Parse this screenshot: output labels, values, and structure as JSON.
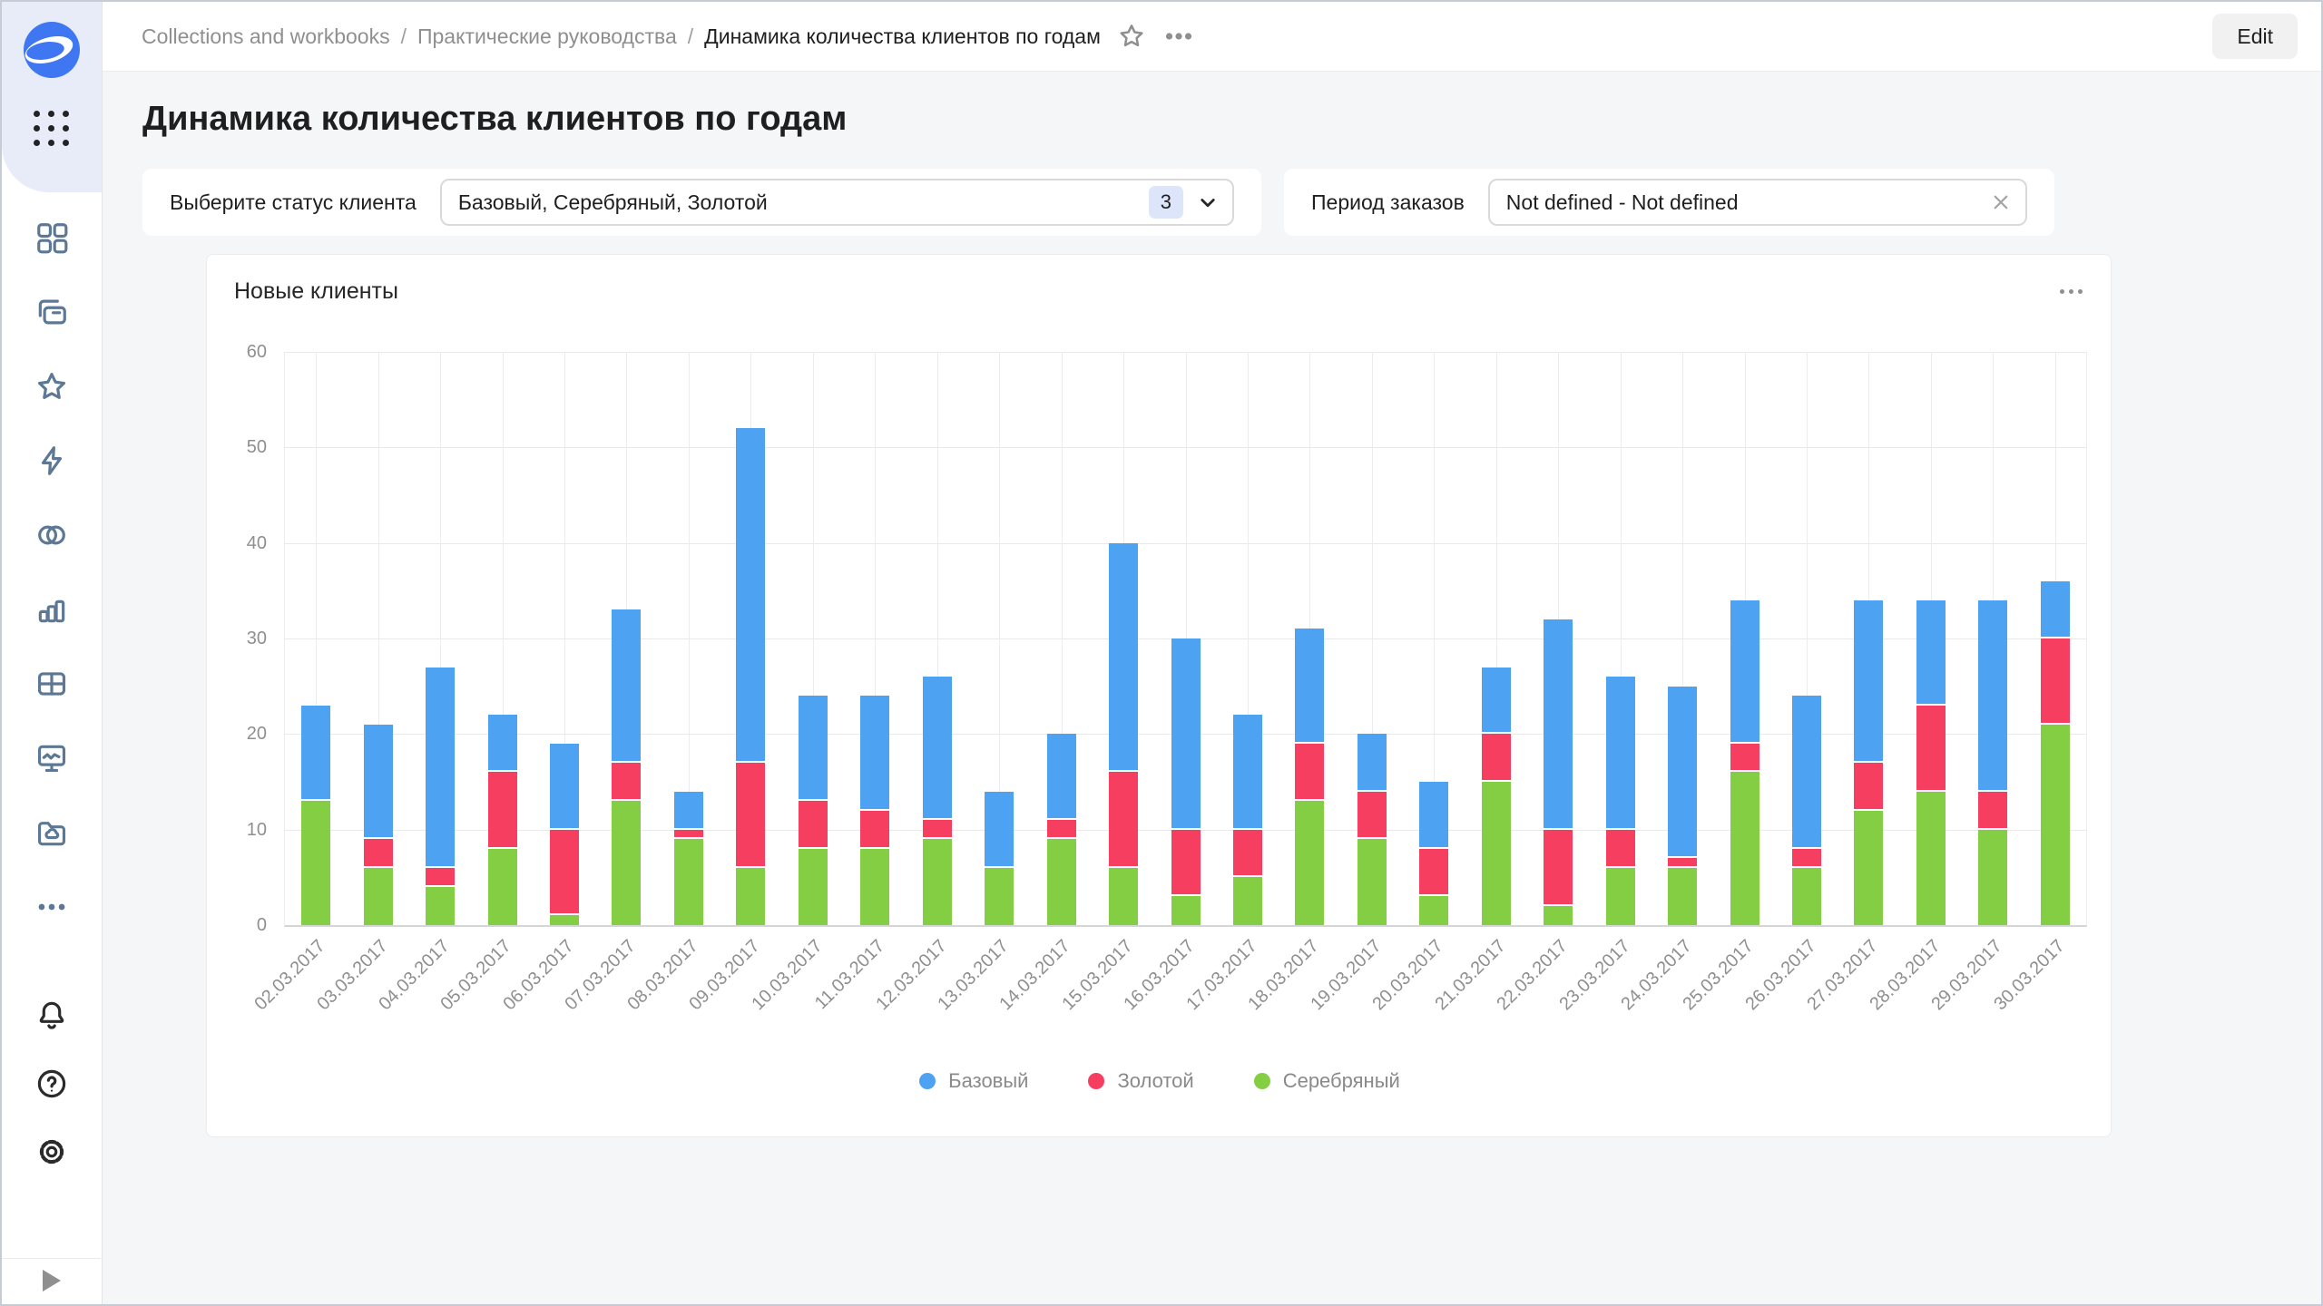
{
  "topbar": {
    "breadcrumb": {
      "items": [
        "Collections and workbooks",
        "Практические руководства",
        "Динамика количества клиентов по годам"
      ],
      "separator": "/"
    },
    "edit_label": "Edit"
  },
  "page": {
    "title": "Динамика количества клиентов по годам"
  },
  "filters": {
    "status": {
      "label": "Выберите статус клиента",
      "value": "Базовый, Серебряный, Золотой",
      "count": "3"
    },
    "period": {
      "label": "Период заказов",
      "value": "Not defined - Not defined"
    }
  },
  "chart": {
    "title": "Новые клиенты"
  },
  "sidebar": {
    "icons": [
      "datalens-logo",
      "apps-grid",
      "widgets",
      "workbooks",
      "favorites",
      "editor",
      "connections",
      "charts",
      "datasets",
      "monitoring",
      "storage",
      "more",
      "notifications",
      "help",
      "settings",
      "expand"
    ]
  },
  "colors": {
    "accent_blue": "#4DA2F1",
    "logo_blue": "#3F76F2",
    "sidebar_icon": "#5c7894",
    "grid": "#e9e9e9",
    "axis_text": "#8f8f8f"
  },
  "chart_data": {
    "type": "bar",
    "stacked": true,
    "title": "Новые клиенты",
    "xlabel": "",
    "ylabel": "",
    "ylim": [
      0,
      60
    ],
    "ytick_step": 10,
    "grid": true,
    "legend_position": "bottom",
    "legend_order": [
      "Базовый",
      "Золотой",
      "Серебряный"
    ],
    "categories": [
      "02.03.2017",
      "03.03.2017",
      "04.03.2017",
      "05.03.2017",
      "06.03.2017",
      "07.03.2017",
      "08.03.2017",
      "09.03.2017",
      "10.03.2017",
      "11.03.2017",
      "12.03.2017",
      "13.03.2017",
      "14.03.2017",
      "15.03.2017",
      "16.03.2017",
      "17.03.2017",
      "18.03.2017",
      "19.03.2017",
      "20.03.2017",
      "21.03.2017",
      "22.03.2017",
      "23.03.2017",
      "24.03.2017",
      "25.03.2017",
      "26.03.2017",
      "27.03.2017",
      "28.03.2017",
      "29.03.2017",
      "30.03.2017"
    ],
    "series": [
      {
        "name": "Серебряный",
        "color": "#84CE44",
        "stack_position": "bottom",
        "values": [
          13,
          6,
          4,
          8,
          1,
          13,
          9,
          6,
          8,
          8,
          9,
          6,
          9,
          6,
          3,
          5,
          13,
          9,
          3,
          15,
          2,
          6,
          6,
          16,
          6,
          12,
          14,
          10,
          21
        ]
      },
      {
        "name": "Золотой",
        "color": "#F63E61",
        "stack_position": "middle",
        "values": [
          0,
          3,
          2,
          8,
          9,
          4,
          1,
          11,
          5,
          4,
          2,
          0,
          2,
          10,
          7,
          5,
          6,
          5,
          5,
          5,
          8,
          4,
          1,
          3,
          2,
          5,
          9,
          4,
          9
        ]
      },
      {
        "name": "Базовый",
        "color": "#4DA2F1",
        "stack_position": "top",
        "values": [
          10,
          12,
          21,
          6,
          9,
          16,
          4,
          35,
          11,
          12,
          15,
          8,
          9,
          24,
          20,
          12,
          12,
          6,
          7,
          7,
          22,
          16,
          18,
          15,
          16,
          17,
          11,
          20,
          6
        ]
      }
    ]
  }
}
